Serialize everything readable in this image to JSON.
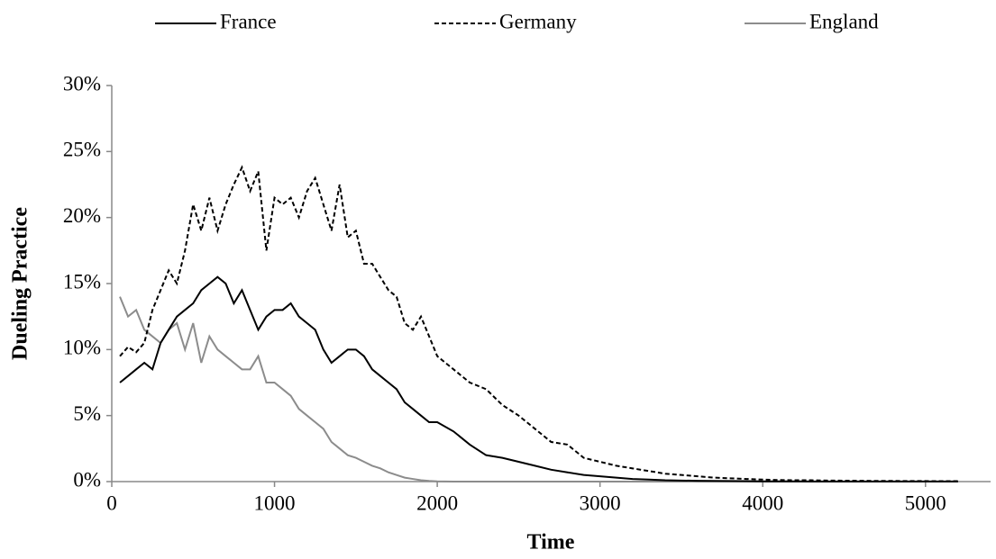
{
  "chart_data": {
    "type": "line",
    "x_label": "Time",
    "y_label": "Dueling Practice",
    "x": [
      50,
      100,
      150,
      200,
      250,
      300,
      350,
      400,
      450,
      500,
      550,
      600,
      650,
      700,
      750,
      800,
      850,
      900,
      950,
      1000,
      1050,
      1100,
      1150,
      1200,
      1250,
      1300,
      1350,
      1400,
      1450,
      1500,
      1550,
      1600,
      1650,
      1700,
      1750,
      1800,
      1850,
      1900,
      1950,
      2000,
      2100,
      2200,
      2300,
      2400,
      2500,
      2600,
      2700,
      2800,
      2900,
      3000,
      3100,
      3200,
      3300,
      3400,
      3500,
      3600,
      3700,
      3800,
      3900,
      4000,
      4100,
      4200,
      4300,
      4400,
      4500,
      4600,
      4700,
      4800,
      4900,
      5000,
      5100,
      5200
    ],
    "series": [
      {
        "name": "France",
        "color": "#000000",
        "style": "solid",
        "values": [
          7.5,
          8,
          8.5,
          9,
          8.5,
          10.5,
          11.5,
          12.5,
          13,
          13.5,
          14.5,
          15,
          15.5,
          15,
          13.5,
          14.5,
          13,
          11.5,
          12.5,
          13,
          13,
          13.5,
          12.5,
          12,
          11.5,
          10,
          9,
          9.5,
          10,
          10,
          9.5,
          8.5,
          8,
          7.5,
          7,
          6,
          5.5,
          5,
          4.5,
          4.5,
          3.8,
          2.8,
          2,
          1.8,
          1.5,
          1.2,
          0.9,
          0.7,
          0.5,
          0.4,
          0.3,
          0.2,
          0.15,
          0.1,
          0.08,
          0.06,
          0.05,
          0.04,
          0.03,
          0.02,
          0.02,
          0.02,
          0.01,
          0.01,
          0.01,
          0.01,
          0.01,
          0.01,
          0.01,
          0.01,
          0.01,
          0.01
        ]
      },
      {
        "name": "Germany",
        "color": "#000000",
        "style": "dashed",
        "values": [
          9.5,
          10.2,
          9.8,
          10.5,
          13,
          14.5,
          16,
          15,
          17.5,
          21,
          19,
          21.5,
          19,
          21,
          22.5,
          23.8,
          22,
          23.5,
          17.5,
          21.5,
          21,
          21.5,
          20,
          22,
          23,
          21,
          19,
          22.5,
          18.5,
          19,
          16.5,
          16.5,
          15.5,
          14.5,
          14,
          12,
          11.5,
          12.5,
          11,
          9.5,
          8.5,
          7.5,
          7,
          5.8,
          5,
          4,
          3,
          2.8,
          1.8,
          1.5,
          1.2,
          1,
          0.8,
          0.6,
          0.5,
          0.4,
          0.3,
          0.25,
          0.2,
          0.15,
          0.12,
          0.1,
          0.1,
          0.08,
          0.07,
          0.06,
          0.05,
          0.05,
          0.04,
          0.04,
          0.03,
          0.03
        ]
      },
      {
        "name": "England",
        "color": "#8c8c8c",
        "style": "solid",
        "values": [
          14,
          12.5,
          13,
          11.5,
          11,
          10.5,
          11.5,
          12,
          10,
          12,
          9,
          11,
          10,
          9.5,
          9,
          8.5,
          8.5,
          9.5,
          7.5,
          7.5,
          7,
          6.5,
          5.5,
          5,
          4.5,
          4,
          3,
          2.5,
          2,
          1.8,
          1.5,
          1.2,
          1,
          0.7,
          0.5,
          0.3,
          0.2,
          0.1,
          0.05,
          0.02,
          0,
          0,
          0,
          0,
          0,
          0,
          0,
          0,
          0,
          0,
          0,
          0,
          0,
          0,
          0,
          0,
          0,
          0,
          0,
          0,
          0,
          0,
          0,
          0,
          0,
          0,
          0,
          0,
          0,
          0,
          0,
          0
        ]
      }
    ],
    "xlim": [
      0,
      5400
    ],
    "xticks": [
      0,
      1000,
      2000,
      3000,
      4000,
      5000
    ],
    "ylim": [
      0,
      30
    ],
    "yticks": [
      {
        "value": 0,
        "label": "0%"
      },
      {
        "value": 5,
        "label": "5%"
      },
      {
        "value": 10,
        "label": "10%"
      },
      {
        "value": 15,
        "label": "15%"
      },
      {
        "value": 20,
        "label": "20%"
      },
      {
        "value": 25,
        "label": "25%"
      },
      {
        "value": 30,
        "label": "30%"
      }
    ],
    "grid": false,
    "legend": "top"
  }
}
